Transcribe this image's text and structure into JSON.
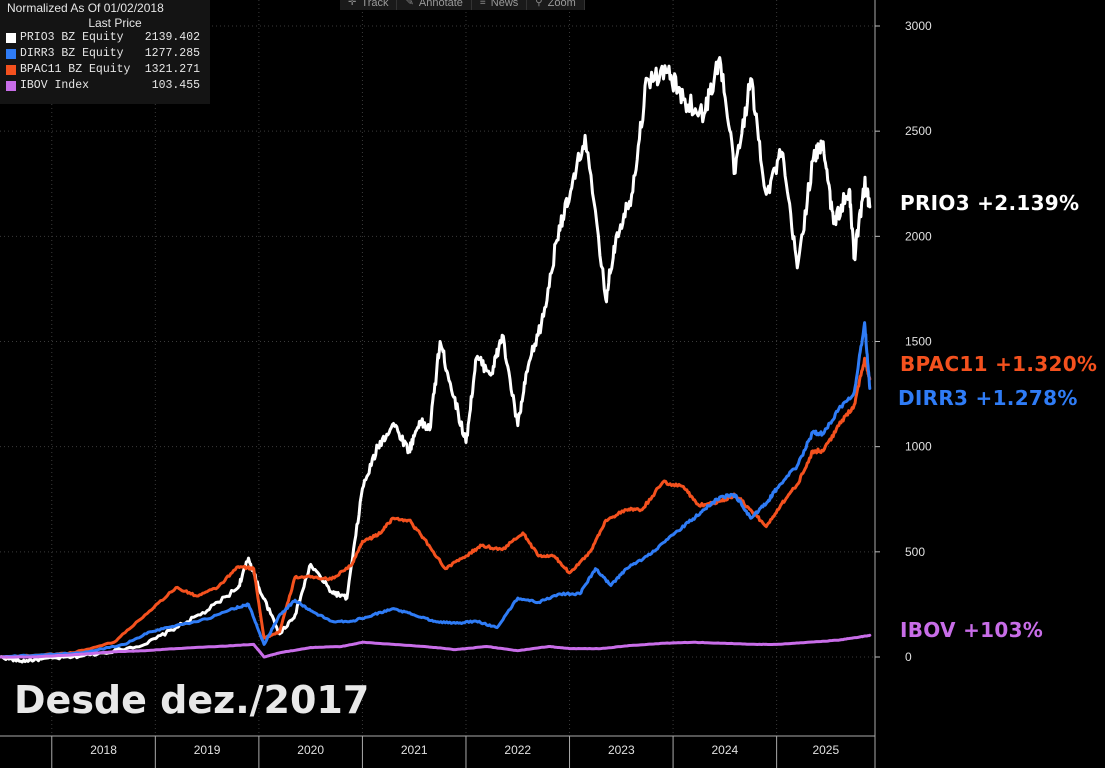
{
  "toolbar": {
    "track": "Track",
    "annotate": "Annotate",
    "news": "News",
    "zoom": "Zoom"
  },
  "legend": {
    "header": "Normalized As Of 01/02/2018",
    "subheader": "Last Price",
    "items": [
      {
        "name": "PRIO3 BZ Equity",
        "value": "2139.402",
        "color": "#ffffff"
      },
      {
        "name": "DIRR3 BZ Equity",
        "value": "1277.285",
        "color": "#2f7cf6"
      },
      {
        "name": "BPAC11 BZ Equity",
        "value": "1321.271",
        "color": "#f4511e"
      },
      {
        "name": "IBOV Index",
        "value": "103.455",
        "color": "#c86de8"
      }
    ]
  },
  "end_labels": {
    "prio3": "PRIO3 +2.139%",
    "bpac11": "BPAC11 +1.320%",
    "dirr3": "DIRR3 +1.278%",
    "ibov": "IBOV +103%"
  },
  "since_label": "Desde dez./2017",
  "chart_data": {
    "type": "line",
    "x_unit": "year",
    "xlim": [
      2017.5,
      2025.95
    ],
    "ylim": [
      -250,
      3080
    ],
    "y_ticks": [
      0,
      500,
      1000,
      1500,
      2000,
      2500,
      3000
    ],
    "x_ticks": [
      "2018",
      "2019",
      "2020",
      "2021",
      "2022",
      "2023",
      "2024",
      "2025"
    ],
    "grid": true,
    "legend_position": "top-left",
    "series": [
      {
        "name": "PRIO3 BZ Equity",
        "color": "#ffffff",
        "points": [
          [
            2017.5,
            0
          ],
          [
            2017.7,
            -20
          ],
          [
            2017.9,
            -10
          ],
          [
            2018.2,
            0
          ],
          [
            2018.5,
            20
          ],
          [
            2018.9,
            60
          ],
          [
            2019.2,
            140
          ],
          [
            2019.5,
            220
          ],
          [
            2019.8,
            330
          ],
          [
            2019.9,
            470
          ],
          [
            2020.0,
            330
          ],
          [
            2020.2,
            110
          ],
          [
            2020.35,
            200
          ],
          [
            2020.5,
            440
          ],
          [
            2020.7,
            310
          ],
          [
            2020.85,
            280
          ],
          [
            2021.0,
            800
          ],
          [
            2021.15,
            1000
          ],
          [
            2021.3,
            1110
          ],
          [
            2021.45,
            980
          ],
          [
            2021.55,
            1120
          ],
          [
            2021.65,
            1080
          ],
          [
            2021.75,
            1500
          ],
          [
            2021.85,
            1300
          ],
          [
            2022.0,
            1020
          ],
          [
            2022.1,
            1420
          ],
          [
            2022.25,
            1350
          ],
          [
            2022.35,
            1530
          ],
          [
            2022.5,
            1100
          ],
          [
            2022.6,
            1380
          ],
          [
            2022.75,
            1620
          ],
          [
            2022.9,
            2050
          ],
          [
            2023.0,
            2180
          ],
          [
            2023.15,
            2480
          ],
          [
            2023.35,
            1700
          ],
          [
            2023.45,
            2000
          ],
          [
            2023.6,
            2200
          ],
          [
            2023.75,
            2750
          ],
          [
            2023.95,
            2780
          ],
          [
            2024.1,
            2650
          ],
          [
            2024.3,
            2580
          ],
          [
            2024.45,
            2850
          ],
          [
            2024.6,
            2300
          ],
          [
            2024.75,
            2750
          ],
          [
            2024.9,
            2200
          ],
          [
            2025.05,
            2400
          ],
          [
            2025.2,
            1850
          ],
          [
            2025.35,
            2360
          ],
          [
            2025.45,
            2450
          ],
          [
            2025.55,
            2060
          ],
          [
            2025.7,
            2220
          ],
          [
            2025.75,
            1900
          ],
          [
            2025.85,
            2250
          ],
          [
            2025.9,
            2140
          ]
        ]
      },
      {
        "name": "BPAC11 BZ Equity",
        "color": "#f4511e",
        "points": [
          [
            2017.5,
            0
          ],
          [
            2017.9,
            10
          ],
          [
            2018.2,
            20
          ],
          [
            2018.6,
            70
          ],
          [
            2018.9,
            200
          ],
          [
            2019.2,
            330
          ],
          [
            2019.4,
            290
          ],
          [
            2019.6,
            330
          ],
          [
            2019.8,
            430
          ],
          [
            2019.95,
            420
          ],
          [
            2020.05,
            90
          ],
          [
            2020.2,
            120
          ],
          [
            2020.35,
            380
          ],
          [
            2020.5,
            380
          ],
          [
            2020.7,
            370
          ],
          [
            2020.9,
            440
          ],
          [
            2021.0,
            550
          ],
          [
            2021.15,
            580
          ],
          [
            2021.3,
            660
          ],
          [
            2021.45,
            650
          ],
          [
            2021.6,
            560
          ],
          [
            2021.8,
            420
          ],
          [
            2022.0,
            480
          ],
          [
            2022.15,
            530
          ],
          [
            2022.35,
            510
          ],
          [
            2022.55,
            590
          ],
          [
            2022.7,
            480
          ],
          [
            2022.85,
            480
          ],
          [
            2023.0,
            400
          ],
          [
            2023.2,
            500
          ],
          [
            2023.35,
            650
          ],
          [
            2023.55,
            700
          ],
          [
            2023.7,
            700
          ],
          [
            2023.9,
            830
          ],
          [
            2024.1,
            810
          ],
          [
            2024.25,
            720
          ],
          [
            2024.45,
            740
          ],
          [
            2024.6,
            770
          ],
          [
            2024.75,
            700
          ],
          [
            2024.9,
            620
          ],
          [
            2025.05,
            730
          ],
          [
            2025.2,
            820
          ],
          [
            2025.35,
            980
          ],
          [
            2025.45,
            980
          ],
          [
            2025.6,
            1100
          ],
          [
            2025.75,
            1200
          ],
          [
            2025.85,
            1420
          ],
          [
            2025.9,
            1321
          ]
        ]
      },
      {
        "name": "DIRR3 BZ Equity",
        "color": "#2f7cf6",
        "points": [
          [
            2017.5,
            0
          ],
          [
            2017.9,
            10
          ],
          [
            2018.3,
            20
          ],
          [
            2018.7,
            60
          ],
          [
            2018.95,
            120
          ],
          [
            2019.2,
            150
          ],
          [
            2019.5,
            180
          ],
          [
            2019.75,
            230
          ],
          [
            2019.9,
            250
          ],
          [
            2020.05,
            60
          ],
          [
            2020.2,
            200
          ],
          [
            2020.35,
            270
          ],
          [
            2020.5,
            220
          ],
          [
            2020.7,
            170
          ],
          [
            2020.9,
            170
          ],
          [
            2021.1,
            200
          ],
          [
            2021.3,
            230
          ],
          [
            2021.5,
            200
          ],
          [
            2021.7,
            170
          ],
          [
            2021.9,
            160
          ],
          [
            2022.1,
            170
          ],
          [
            2022.3,
            140
          ],
          [
            2022.5,
            280
          ],
          [
            2022.7,
            260
          ],
          [
            2022.9,
            300
          ],
          [
            2023.1,
            300
          ],
          [
            2023.25,
            420
          ],
          [
            2023.4,
            340
          ],
          [
            2023.55,
            420
          ],
          [
            2023.75,
            480
          ],
          [
            2023.95,
            560
          ],
          [
            2024.15,
            640
          ],
          [
            2024.3,
            700
          ],
          [
            2024.45,
            760
          ],
          [
            2024.6,
            770
          ],
          [
            2024.75,
            660
          ],
          [
            2024.9,
            730
          ],
          [
            2025.0,
            800
          ],
          [
            2025.2,
            910
          ],
          [
            2025.35,
            1070
          ],
          [
            2025.45,
            1060
          ],
          [
            2025.6,
            1180
          ],
          [
            2025.75,
            1260
          ],
          [
            2025.85,
            1590
          ],
          [
            2025.9,
            1277
          ]
        ]
      },
      {
        "name": "IBOV Index",
        "color": "#c86de8",
        "points": [
          [
            2017.5,
            0
          ],
          [
            2017.8,
            0
          ],
          [
            2018.2,
            10
          ],
          [
            2018.6,
            25
          ],
          [
            2018.9,
            30
          ],
          [
            2019.2,
            40
          ],
          [
            2019.6,
            50
          ],
          [
            2019.95,
            60
          ],
          [
            2020.05,
            0
          ],
          [
            2020.2,
            20
          ],
          [
            2020.5,
            45
          ],
          [
            2020.8,
            50
          ],
          [
            2021.0,
            70
          ],
          [
            2021.3,
            60
          ],
          [
            2021.6,
            50
          ],
          [
            2021.9,
            35
          ],
          [
            2022.2,
            50
          ],
          [
            2022.5,
            30
          ],
          [
            2022.8,
            50
          ],
          [
            2023.0,
            40
          ],
          [
            2023.3,
            40
          ],
          [
            2023.6,
            55
          ],
          [
            2023.9,
            65
          ],
          [
            2024.2,
            70
          ],
          [
            2024.5,
            65
          ],
          [
            2024.8,
            60
          ],
          [
            2025.0,
            60
          ],
          [
            2025.3,
            70
          ],
          [
            2025.6,
            80
          ],
          [
            2025.8,
            95
          ],
          [
            2025.9,
            103
          ]
        ]
      }
    ]
  }
}
